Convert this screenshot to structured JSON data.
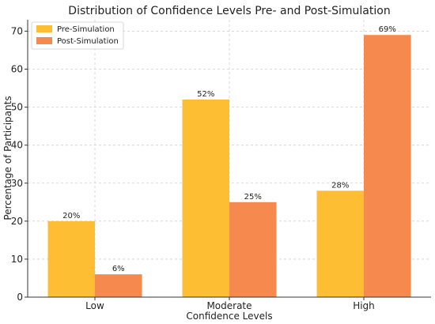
{
  "chart_data": {
    "type": "bar",
    "title": "Distribution of Confidence Levels Pre- and Post-Simulation",
    "xlabel": "Confidence Levels",
    "ylabel": "Percentage of Participants",
    "categories": [
      "Low",
      "Moderate",
      "High"
    ],
    "series": [
      {
        "name": "Pre-Simulation",
        "values": [
          20,
          52,
          28
        ],
        "labels": [
          "20%",
          "52%",
          "28%"
        ],
        "color": "#FDBE33"
      },
      {
        "name": "Post-Simulation",
        "values": [
          6,
          25,
          69
        ],
        "labels": [
          "6%",
          "25%",
          "69%"
        ],
        "color": "#F68A4E"
      }
    ],
    "ylim": [
      0,
      73
    ],
    "yticks": [
      0,
      10,
      20,
      30,
      40,
      50,
      60,
      70
    ],
    "grid": true,
    "legend_position": "top-left"
  }
}
